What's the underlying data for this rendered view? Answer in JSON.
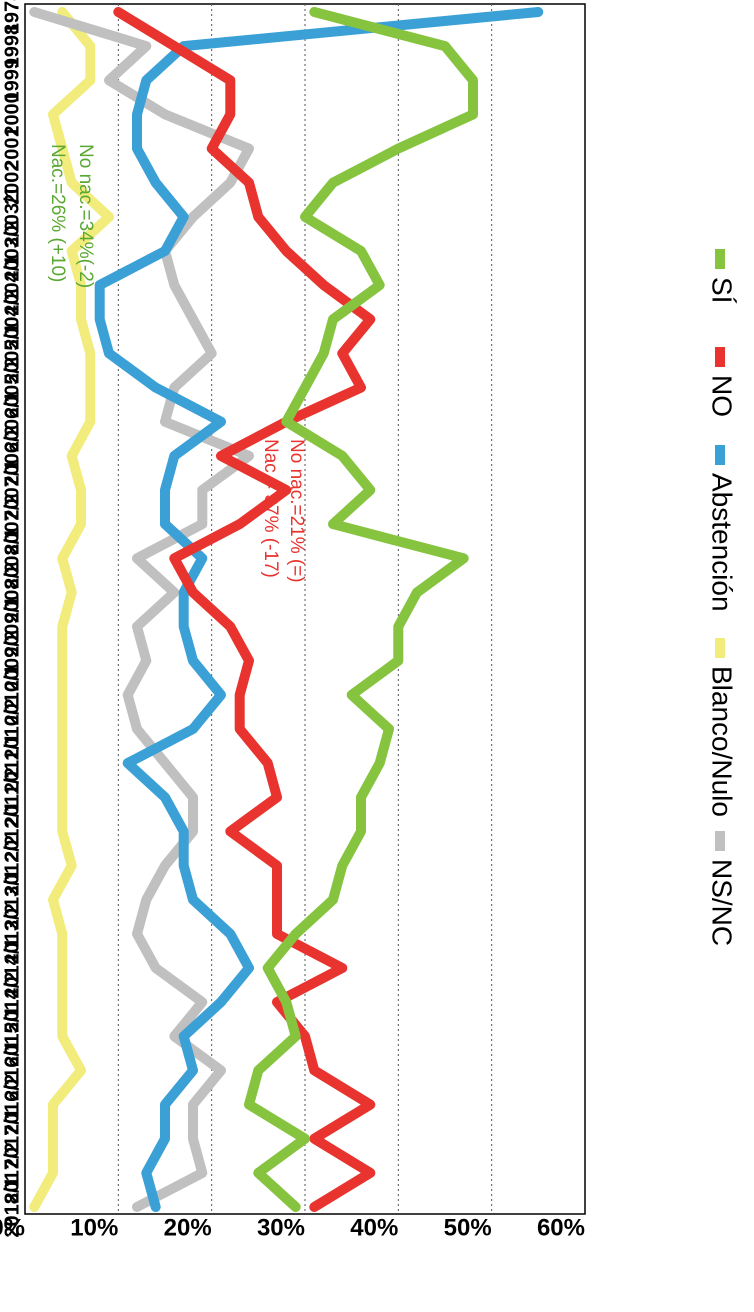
{
  "chart_data": {
    "type": "line",
    "title": "",
    "xlabel": "",
    "ylabel": "",
    "ylim": [
      0,
      60
    ],
    "y_ticks": [
      "0%",
      "10%",
      "20%",
      "30%",
      "40%",
      "50%",
      "60%"
    ],
    "grid": true,
    "legend_position": "right",
    "categories": [
      "1978",
      "1998",
      "1999",
      "2000",
      "2001",
      "2002",
      "2003/1",
      "2003/2",
      "2004/1",
      "2004/2",
      "2005/1",
      "2005/2",
      "2006/1",
      "2006/2",
      "2007/1",
      "2007/2",
      "2008/1",
      "2008/2",
      "2009/1",
      "2009/2",
      "2010/1",
      "2010/2",
      "2011/1",
      "2011/2",
      "2012/1",
      "2012/2",
      "2013/1",
      "2013/2",
      "2014/1",
      "2014/2",
      "2015/1",
      "2016/1",
      "2016/2",
      "2017/1",
      "2017/2",
      "2018/1"
    ],
    "series": [
      {
        "name": "SÍ",
        "color": "#86c440",
        "values": [
          31,
          45,
          48,
          48,
          40,
          33,
          30,
          36,
          38,
          33,
          32,
          30,
          28,
          34,
          37,
          33,
          47,
          42,
          40,
          40,
          35,
          39,
          38,
          36,
          36,
          34,
          33,
          29,
          26,
          28,
          29,
          25,
          24,
          30,
          25,
          29
        ]
      },
      {
        "name": "NO",
        "color": "#e8332e",
        "values": [
          10,
          16,
          22,
          22,
          20,
          24,
          25,
          28,
          32,
          37,
          34,
          36,
          28,
          21,
          28,
          23,
          16,
          18,
          22,
          24,
          23,
          23,
          26,
          27,
          22,
          27,
          27,
          27,
          34,
          27,
          30,
          31,
          37,
          31,
          37,
          31
        ]
      },
      {
        "name": "Abstención",
        "color": "#3aa0d6",
        "values": [
          55,
          17,
          13,
          12,
          12,
          14,
          17,
          15,
          8,
          8,
          9,
          14,
          21,
          16,
          15,
          15,
          19,
          17,
          17,
          18,
          21,
          18,
          11,
          15,
          17,
          17,
          18,
          22,
          24,
          21,
          17,
          18,
          15,
          15,
          13,
          14
        ]
      },
      {
        "name": "Blanco/Nulo",
        "color": "#f2ec7c",
        "values": [
          4,
          7,
          7,
          3,
          4,
          5,
          9,
          5,
          6,
          6,
          7,
          7,
          7,
          5,
          6,
          6,
          4,
          5,
          4,
          4,
          4,
          4,
          4,
          4,
          4,
          5,
          3,
          4,
          4,
          4,
          4,
          6,
          3,
          3,
          3,
          1
        ]
      },
      {
        "name": "NS/NC",
        "color": "#c0c0c0",
        "values": [
          1,
          13,
          9,
          15,
          24,
          22,
          18,
          15,
          16,
          18,
          20,
          16,
          15,
          24,
          19,
          19,
          12,
          16,
          12,
          13,
          11,
          12,
          15,
          18,
          18,
          15,
          13,
          12,
          14,
          19,
          16,
          21,
          18,
          18,
          19,
          12
        ]
      }
    ],
    "annotations": [
      {
        "text": "Nac.=26% (+10)",
        "color": "#5aa832"
      },
      {
        "text": "No nac.=34%(-2)",
        "color": "#5aa832"
      },
      {
        "text": "Nac.= 37% (-17)",
        "color": "#e8332e"
      },
      {
        "text": "No nac.=21% (=)",
        "color": "#e8332e"
      }
    ]
  }
}
